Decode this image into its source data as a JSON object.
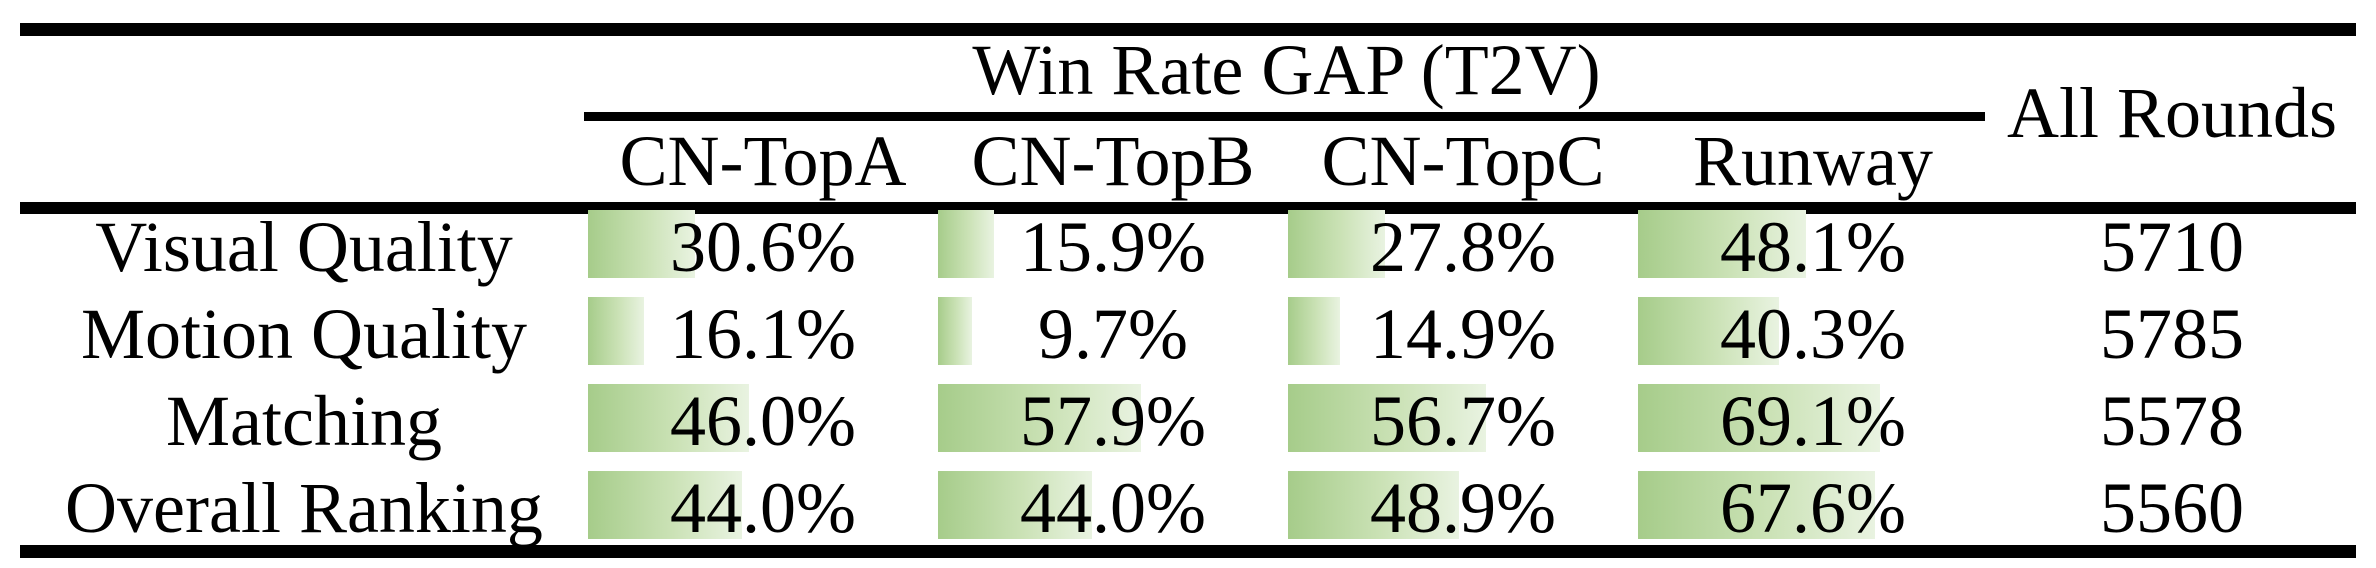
{
  "table": {
    "group_header": "Win Rate GAP (T2V)",
    "columns": [
      "CN-TopA",
      "CN-TopB",
      "CN-TopC",
      "Runway"
    ],
    "all_rounds_header": "All Rounds",
    "rows": [
      {
        "label": "Visual Quality",
        "cells": [
          "30.6%",
          "15.9%",
          "27.8%",
          "48.1%"
        ],
        "values": [
          30.6,
          15.9,
          27.8,
          48.1
        ],
        "all_rounds": "5710"
      },
      {
        "label": "Motion Quality",
        "cells": [
          "16.1%",
          "9.7%",
          "14.9%",
          "40.3%"
        ],
        "values": [
          16.1,
          9.7,
          14.9,
          40.3
        ],
        "all_rounds": "5785"
      },
      {
        "label": "Matching",
        "cells": [
          "46.0%",
          "57.9%",
          "56.7%",
          "69.1%"
        ],
        "values": [
          46.0,
          57.9,
          56.7,
          69.1
        ],
        "all_rounds": "5578"
      },
      {
        "label": "Overall Ranking",
        "cells": [
          "44.0%",
          "44.0%",
          "48.9%",
          "67.6%"
        ],
        "values": [
          44.0,
          44.0,
          48.9,
          67.6
        ],
        "all_rounds": "5560"
      }
    ],
    "colors": {
      "bar_gradient_start": "#a6cc8a",
      "bar_gradient_mid": "#cbe2b6",
      "bar_gradient_end": "#e9f3e1",
      "rule": "#000000",
      "background": "#ffffff"
    }
  },
  "chart_data": {
    "type": "table",
    "title": "Win Rate GAP (T2V)",
    "row_labels": [
      "Visual Quality",
      "Motion Quality",
      "Matching",
      "Overall Ranking"
    ],
    "columns": [
      "CN-TopA",
      "CN-TopB",
      "CN-TopC",
      "Runway",
      "All Rounds"
    ],
    "series": [
      {
        "name": "CN-TopA",
        "values": [
          30.6,
          16.1,
          46.0,
          44.0
        ]
      },
      {
        "name": "CN-TopB",
        "values": [
          15.9,
          9.7,
          57.9,
          44.0
        ]
      },
      {
        "name": "CN-TopC",
        "values": [
          27.8,
          14.9,
          56.7,
          48.9
        ]
      },
      {
        "name": "Runway",
        "values": [
          48.1,
          40.3,
          69.1,
          67.6
        ]
      },
      {
        "name": "All Rounds",
        "values": [
          5710,
          5785,
          5578,
          5560
        ]
      }
    ],
    "value_unit": "percent (data-bar cells), count (All Rounds)",
    "bar_scale": "green gradient data bar, width proportional to percent of cell width"
  }
}
